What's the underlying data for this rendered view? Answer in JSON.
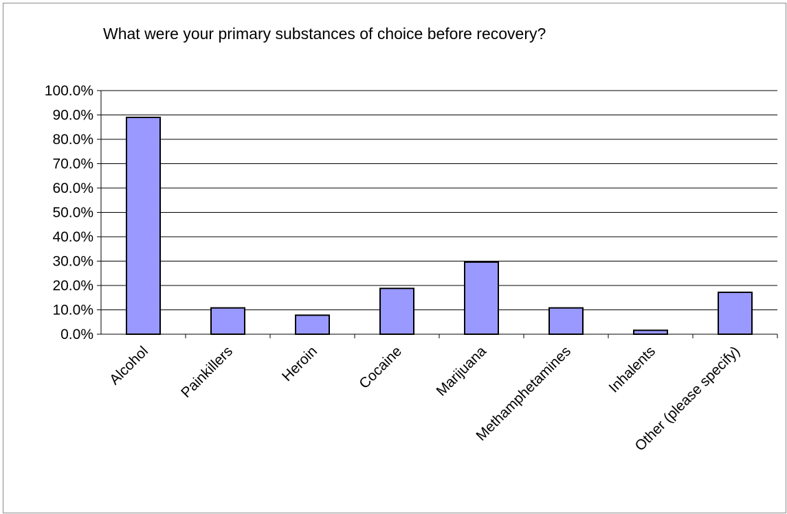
{
  "chart_data": {
    "type": "bar",
    "title": "What were your primary substances of choice before recovery?",
    "xlabel": "",
    "ylabel": "",
    "categories": [
      "Alcohol",
      "Painkillers",
      "Heroin",
      "Cocaine",
      "Marijuana",
      "Methamphetamines",
      "Inhalents",
      "Other (please specify)"
    ],
    "values": [
      89.0,
      10.8,
      7.8,
      18.8,
      29.6,
      10.8,
      1.6,
      17.2
    ],
    "ylim": [
      0,
      100
    ],
    "yticks": [
      "0.0%",
      "10.0%",
      "20.0%",
      "30.0%",
      "40.0%",
      "50.0%",
      "60.0%",
      "70.0%",
      "80.0%",
      "90.0%",
      "100.0%"
    ],
    "grid": true,
    "legend": "none",
    "colors": {
      "bar_fill": "#9999FF",
      "bar_stroke": "#000000",
      "gridline": "#000000",
      "border": "#8A8A8A"
    }
  }
}
